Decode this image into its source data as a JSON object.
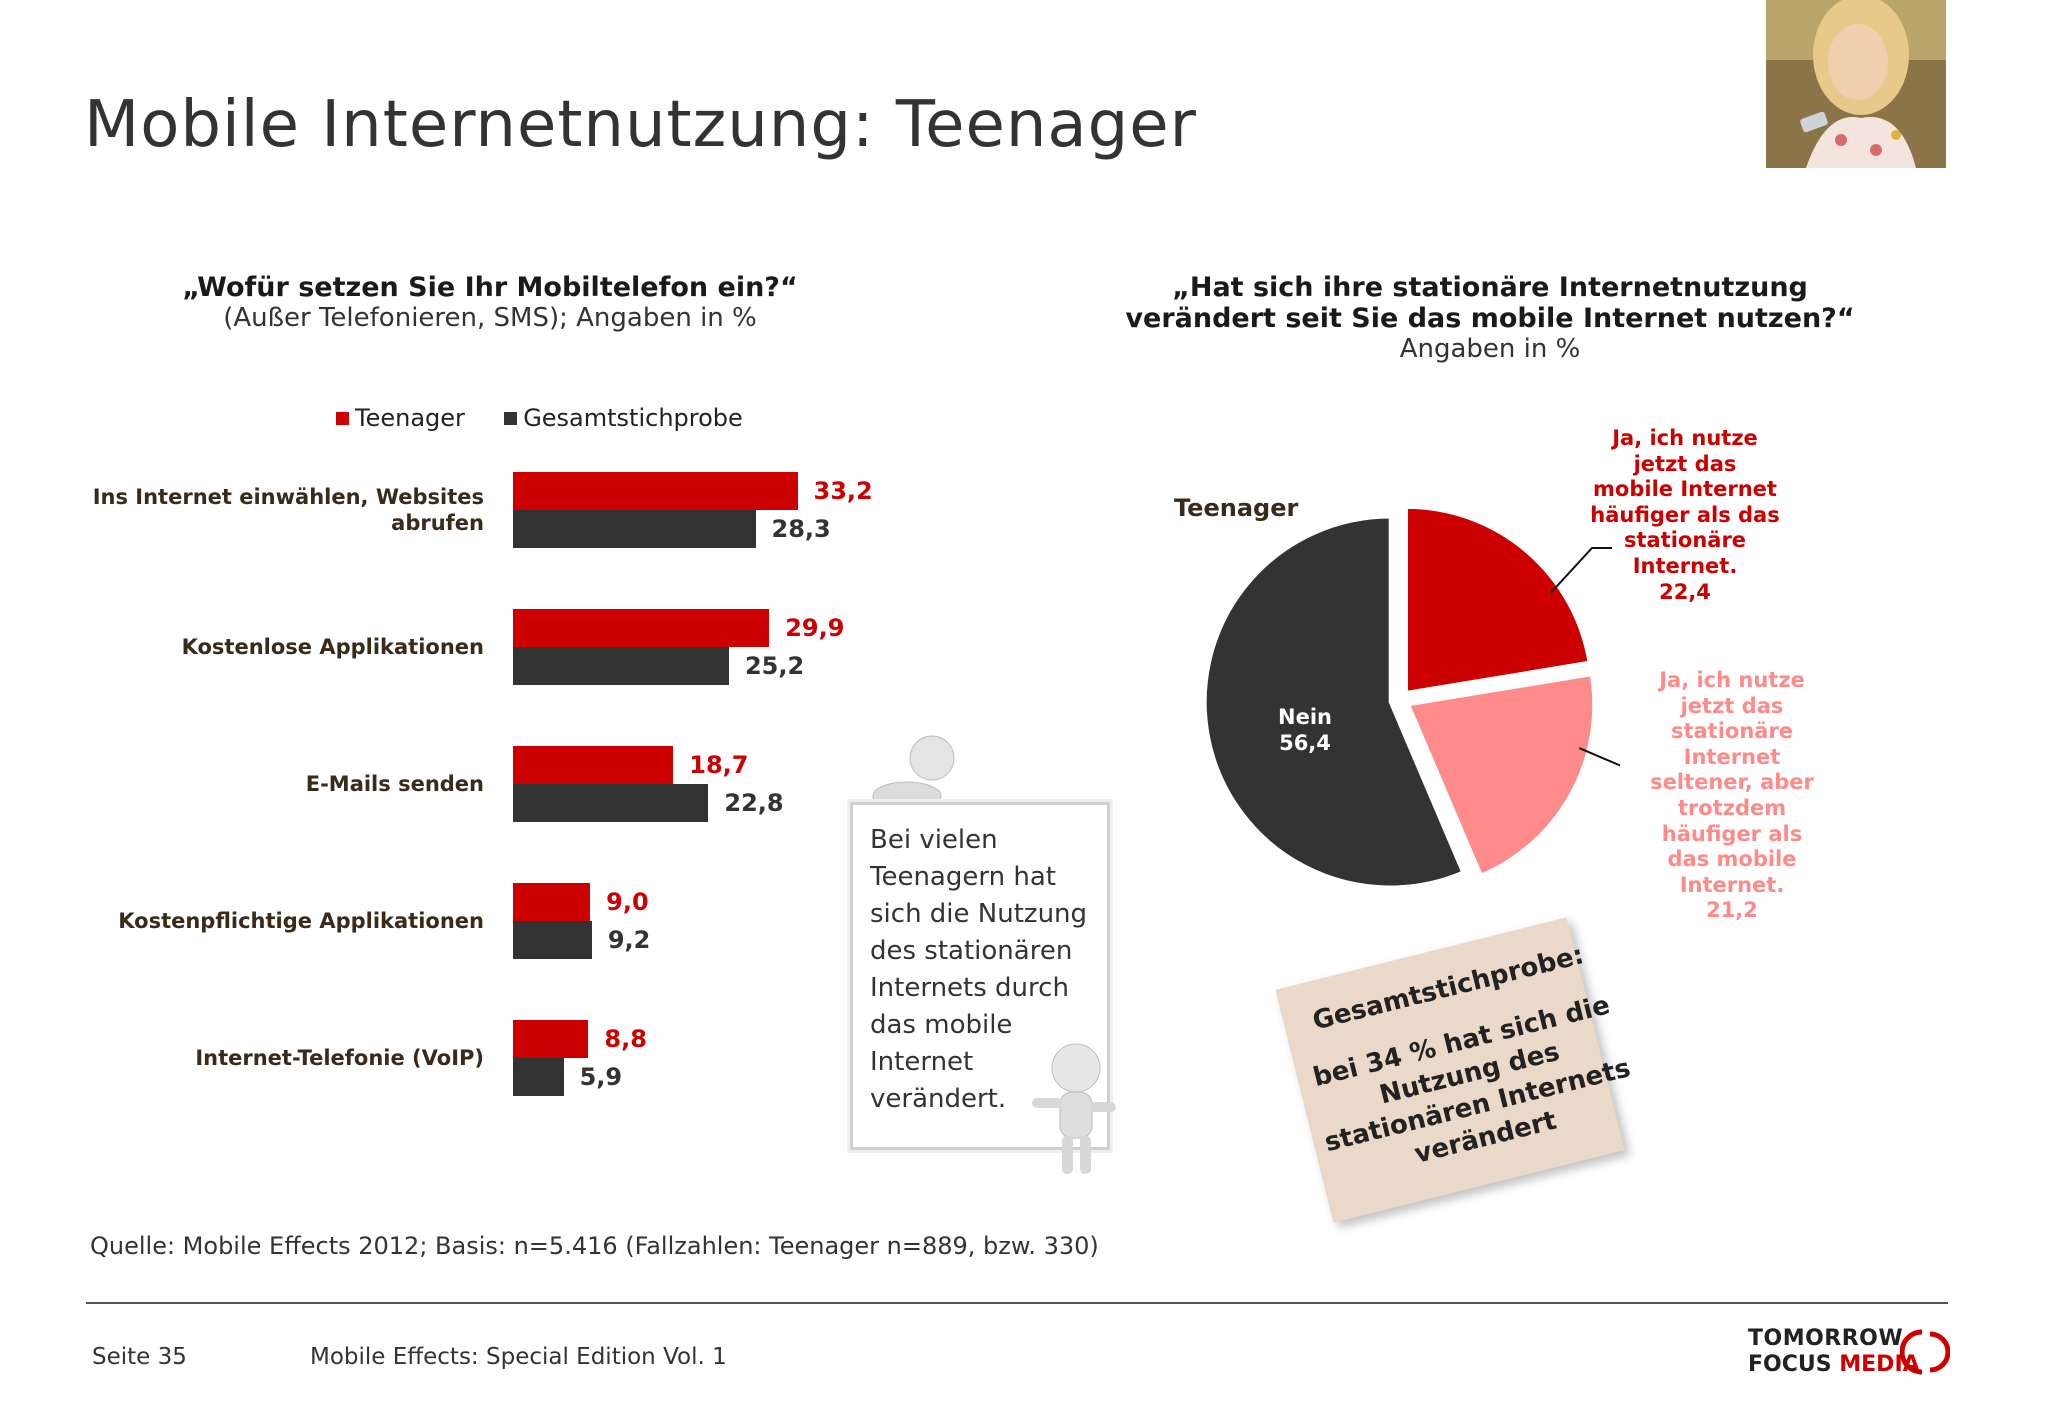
{
  "header": {
    "title": "Mobile Internetnutzung: Teenager"
  },
  "left_chart": {
    "question": "„Wofür setzen Sie Ihr Mobiltelefon ein?“",
    "subtitle": "(Außer Telefonieren, SMS); Angaben in %",
    "legend": [
      "Teenager",
      "Gesamtstichprobe"
    ],
    "value_labels": {
      "teen": [
        "33,2",
        "29,9",
        "18,7",
        "9,0",
        "8,8"
      ],
      "total": [
        "28,3",
        "25,2",
        "22,8",
        "9,2",
        "5,9"
      ]
    }
  },
  "right_chart": {
    "question_line1": "„Hat sich ihre stationäre Internetnutzung",
    "question_line2": "verändert seit Sie das mobile Internet nutzen?“",
    "subtitle": "Angaben in %",
    "pie_title": "Teenager",
    "slice_labels": {
      "ja_haeufiger": "Ja, ich nutze jetzt das mobile Internet häufiger als das stationäre Internet.",
      "ja_haeufiger_value": "22,4",
      "ja_seltener": "Ja, ich nutze jetzt das stationäre Internet seltener, aber trotzdem häufiger als das mobile Internet.",
      "ja_seltener_value": "21,2",
      "nein": "Nein",
      "nein_value": "56,4"
    }
  },
  "note": {
    "text": "Bei vielen Teenagern hat sich die Nutzung des stationären Internets durch das mobile Internet verändert."
  },
  "sticky": {
    "heading": "Gesamtstichprobe:",
    "text": "bei 34 % hat sich die Nutzung des stationären Internets verändert"
  },
  "source": "Quelle: Mobile Effects 2012; Basis: n=5.416 (Fallzahlen: Teenager n=889, bzw. 330)",
  "footer": {
    "page": "Seite 35",
    "title": "Mobile Effects: Special Edition Vol. 1",
    "logo_line1": "TOMORROW",
    "logo_line2a": "FOCUS",
    "logo_line2b": "MEDIA"
  },
  "colors": {
    "teen": "#cc0000",
    "total": "#333333",
    "pie_light": "#ff8a8a",
    "pie_dark": "#333333"
  },
  "chart_data": [
    {
      "type": "bar",
      "orientation": "horizontal",
      "title": "„Wofür setzen Sie Ihr Mobiltelefon ein?“",
      "subtitle": "(Außer Telefonieren, SMS); Angaben in %",
      "categories": [
        "Ins Internet einwählen, Websites abrufen",
        "Kostenlose Applikationen",
        "E-Mails senden",
        "Kostenpflichtige Applikationen",
        "Internet-Telefonie (VoIP)"
      ],
      "series": [
        {
          "name": "Teenager",
          "values": [
            33.2,
            29.9,
            18.7,
            9.0,
            8.8
          ]
        },
        {
          "name": "Gesamtstichprobe",
          "values": [
            28.3,
            25.2,
            22.8,
            9.2,
            5.9
          ]
        }
      ],
      "legend_position": "top",
      "grid": false
    },
    {
      "type": "pie",
      "title": "„Hat sich ihre stationäre Internetnutzung verändert seit Sie das mobile Internet nutzen?“",
      "subtitle": "Angaben in %",
      "categories": [
        "Ja, ich nutze jetzt das mobile Internet häufiger als das stationäre Internet.",
        "Ja, ich nutze jetzt das stationäre Internet seltener, aber trotzdem häufiger als das mobile Internet.",
        "Nein"
      ],
      "values": [
        22.4,
        21.2,
        56.4
      ]
    }
  ]
}
